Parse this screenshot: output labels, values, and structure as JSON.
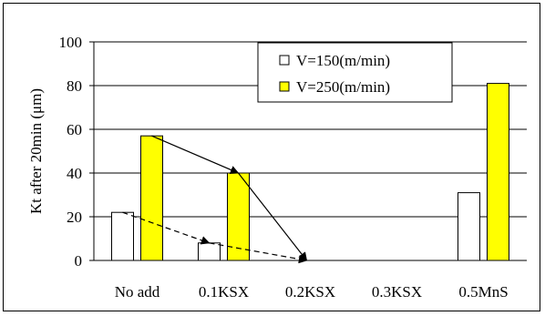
{
  "chart_data": {
    "type": "bar",
    "title": "",
    "xlabel": "",
    "ylabel": "Kt after 20min (μm)",
    "categories": [
      "No add",
      "0.1KSX",
      "0.2KSX",
      "0.3KSX",
      "0.5MnS"
    ],
    "series": [
      {
        "name": "V=150(m/min)",
        "color": "#ffffff",
        "values": [
          22,
          8,
          0,
          0,
          31
        ]
      },
      {
        "name": "V=250(m/min)",
        "color": "#ffff00",
        "values": [
          57,
          40,
          0,
          0,
          81
        ]
      }
    ],
    "ylim": [
      0,
      100
    ],
    "yticks": [
      0,
      20,
      40,
      60,
      80,
      100
    ],
    "grid": true,
    "legend_position": "top-right",
    "annotations": [
      {
        "style": "solid",
        "from_category": "No add",
        "from_value": 57,
        "to_category": "0.2KSX",
        "to_value": 0,
        "via_category": "0.1KSX",
        "via_value": 40
      },
      {
        "style": "dashed",
        "from_category": "No add",
        "from_value": 22,
        "to_category": "0.2KSX",
        "to_value": 0,
        "via_category": "0.1KSX",
        "via_value": 8
      }
    ]
  }
}
